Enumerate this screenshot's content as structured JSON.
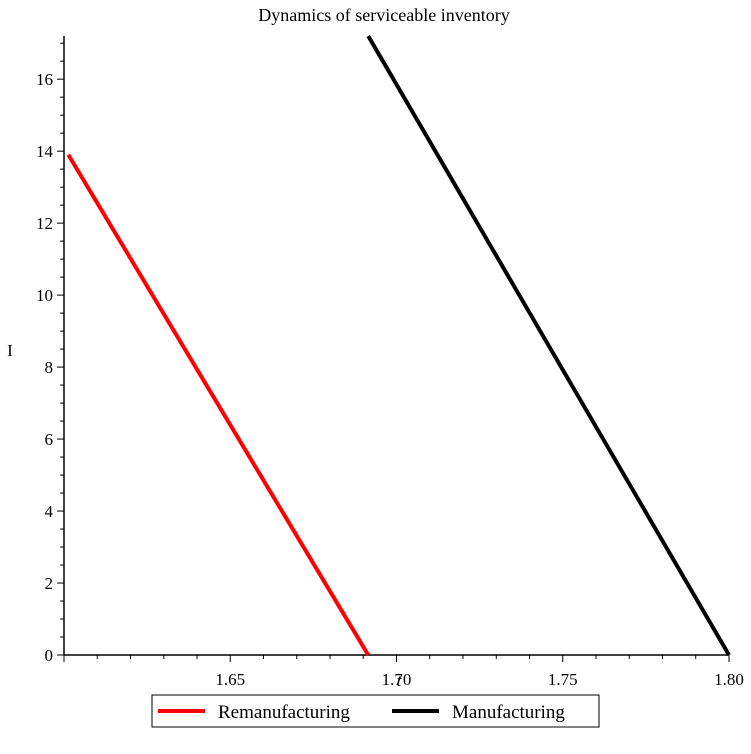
{
  "chart_data": {
    "type": "line",
    "title": "Dynamics of serviceable inventory",
    "xlabel": "t",
    "ylabel": "I",
    "xlim": [
      1.6,
      1.8
    ],
    "ylim": [
      0,
      17.2
    ],
    "x_ticks": [
      "1.65",
      "1.70",
      "1.75",
      "1.80"
    ],
    "y_ticks": [
      "0",
      "2",
      "4",
      "6",
      "8",
      "10",
      "12",
      "14",
      "16"
    ],
    "grid": false,
    "legend_position": "bottom",
    "series": [
      {
        "name": "Remanufacturing",
        "color": "#ff0000",
        "points": [
          [
            1.6013,
            13.9
          ],
          [
            1.6915,
            0
          ]
        ]
      },
      {
        "name": "Manufacturing",
        "color": "#000000",
        "points": [
          [
            1.6915,
            17.2
          ],
          [
            1.8,
            0
          ]
        ]
      }
    ]
  }
}
